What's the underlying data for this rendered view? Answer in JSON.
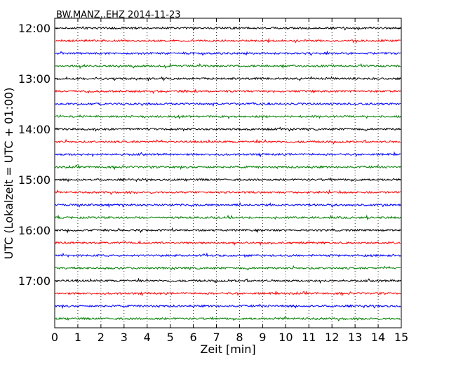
{
  "chart_data": {
    "type": "line",
    "title": "BW.MANZ..EHZ 2014-11-23",
    "xlabel": "Zeit  [min]",
    "ylabel": "UTC (Lokalzeit = UTC + 01:00)",
    "xlim": [
      0,
      15
    ],
    "x_ticks": [
      0,
      1,
      2,
      3,
      4,
      5,
      6,
      7,
      8,
      9,
      10,
      11,
      12,
      13,
      14,
      15
    ],
    "y_tick_labels": [
      "12:00",
      "13:00",
      "14:00",
      "15:00",
      "16:00",
      "17:00"
    ],
    "grid": "vertical dotted",
    "trace_interval_minutes": 15,
    "series_colors": [
      "#000000",
      "#ff0000",
      "#0000ff",
      "#008000"
    ],
    "traces": [
      {
        "start": "12:00"
      },
      {
        "start": "12:15"
      },
      {
        "start": "12:30"
      },
      {
        "start": "12:45"
      },
      {
        "start": "13:00"
      },
      {
        "start": "13:15"
      },
      {
        "start": "13:30"
      },
      {
        "start": "13:45"
      },
      {
        "start": "14:00"
      },
      {
        "start": "14:15"
      },
      {
        "start": "14:30"
      },
      {
        "start": "14:45"
      },
      {
        "start": "15:00"
      },
      {
        "start": "15:15"
      },
      {
        "start": "15:30"
      },
      {
        "start": "15:45"
      },
      {
        "start": "16:00"
      },
      {
        "start": "16:15"
      },
      {
        "start": "16:30"
      },
      {
        "start": "16:45"
      },
      {
        "start": "17:00"
      },
      {
        "start": "17:15"
      },
      {
        "start": "17:30"
      },
      {
        "start": "17:45"
      }
    ]
  }
}
